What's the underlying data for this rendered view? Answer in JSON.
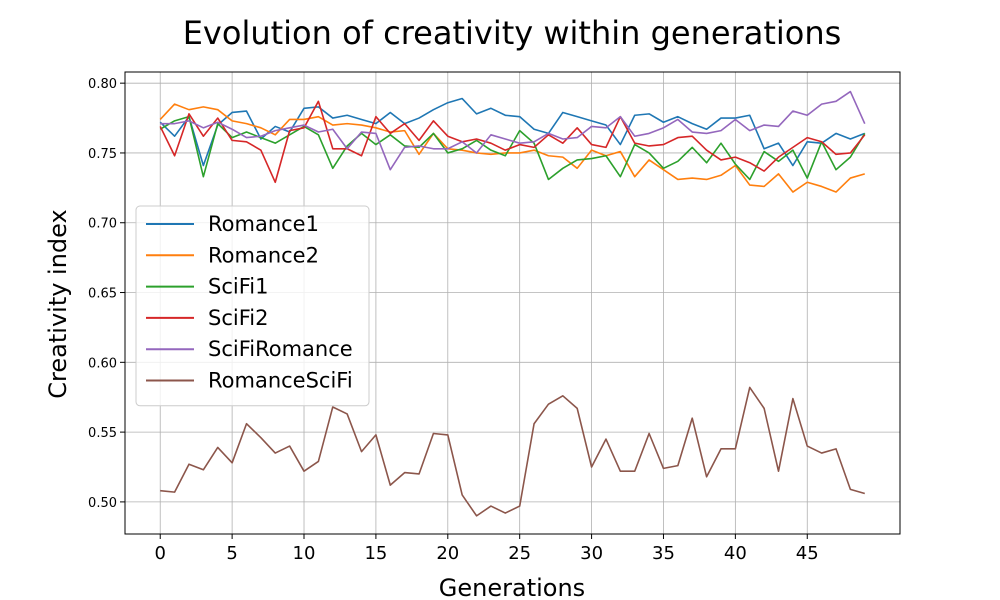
{
  "chart_data": {
    "type": "line",
    "title": "Evolution of creativity within generations",
    "xlabel": "Generations",
    "ylabel": "Creativity index",
    "xlim": [
      -2.45,
      51.45
    ],
    "ylim": [
      0.477,
      0.808
    ],
    "xticks": [
      0,
      5,
      10,
      15,
      20,
      25,
      30,
      35,
      40,
      45
    ],
    "xtick_labels": [
      "0",
      "5",
      "10",
      "15",
      "20",
      "25",
      "30",
      "35",
      "40",
      "45"
    ],
    "yticks": [
      0.5,
      0.55,
      0.6,
      0.65,
      0.7,
      0.75,
      0.8
    ],
    "ytick_labels": [
      "0.50",
      "0.55",
      "0.60",
      "0.65",
      "0.70",
      "0.75",
      "0.80"
    ],
    "grid": true,
    "legend_position": "center-left",
    "x": [
      0,
      1,
      2,
      3,
      4,
      5,
      6,
      7,
      8,
      9,
      10,
      11,
      12,
      13,
      14,
      15,
      16,
      17,
      18,
      19,
      20,
      21,
      22,
      23,
      24,
      25,
      26,
      27,
      28,
      29,
      30,
      31,
      32,
      33,
      34,
      35,
      36,
      37,
      38,
      39,
      40,
      41,
      42,
      43,
      44,
      45,
      46,
      47,
      48,
      49
    ],
    "series": [
      {
        "name": "Romance1",
        "color": "#1f77b4",
        "values": [
          0.772,
          0.762,
          0.776,
          0.741,
          0.77,
          0.779,
          0.78,
          0.76,
          0.769,
          0.765,
          0.782,
          0.783,
          0.775,
          0.777,
          0.774,
          0.771,
          0.779,
          0.771,
          0.775,
          0.781,
          0.786,
          0.789,
          0.778,
          0.782,
          0.777,
          0.776,
          0.767,
          0.764,
          0.779,
          0.776,
          0.773,
          0.77,
          0.756,
          0.777,
          0.778,
          0.772,
          0.776,
          0.771,
          0.767,
          0.775,
          0.775,
          0.777,
          0.753,
          0.757,
          0.741,
          0.758,
          0.757,
          0.764,
          0.76,
          0.764
        ]
      },
      {
        "name": "Romance2",
        "color": "#ff7f0e",
        "values": [
          0.774,
          0.785,
          0.781,
          0.783,
          0.781,
          0.773,
          0.771,
          0.768,
          0.763,
          0.774,
          0.774,
          0.776,
          0.77,
          0.771,
          0.77,
          0.768,
          0.765,
          0.766,
          0.749,
          0.764,
          0.753,
          0.752,
          0.75,
          0.749,
          0.75,
          0.75,
          0.752,
          0.748,
          0.747,
          0.739,
          0.752,
          0.748,
          0.751,
          0.733,
          0.745,
          0.738,
          0.731,
          0.732,
          0.731,
          0.734,
          0.741,
          0.727,
          0.726,
          0.735,
          0.722,
          0.729,
          0.726,
          0.722,
          0.732,
          0.735
        ]
      },
      {
        "name": "SciFi1",
        "color": "#2ca02c",
        "values": [
          0.767,
          0.773,
          0.776,
          0.733,
          0.771,
          0.761,
          0.765,
          0.761,
          0.757,
          0.763,
          0.769,
          0.763,
          0.739,
          0.755,
          0.764,
          0.756,
          0.763,
          0.755,
          0.754,
          0.764,
          0.75,
          0.753,
          0.759,
          0.752,
          0.748,
          0.766,
          0.757,
          0.731,
          0.739,
          0.745,
          0.746,
          0.748,
          0.733,
          0.756,
          0.75,
          0.739,
          0.744,
          0.754,
          0.743,
          0.757,
          0.742,
          0.731,
          0.751,
          0.744,
          0.752,
          0.732,
          0.758,
          0.738,
          0.747,
          0.764
        ]
      },
      {
        "name": "SciFi2",
        "color": "#d62728",
        "values": [
          0.769,
          0.748,
          0.778,
          0.762,
          0.775,
          0.759,
          0.758,
          0.752,
          0.729,
          0.766,
          0.768,
          0.787,
          0.753,
          0.753,
          0.748,
          0.776,
          0.764,
          0.771,
          0.759,
          0.773,
          0.762,
          0.758,
          0.76,
          0.757,
          0.752,
          0.756,
          0.754,
          0.763,
          0.757,
          0.768,
          0.756,
          0.754,
          0.776,
          0.757,
          0.755,
          0.756,
          0.761,
          0.762,
          0.752,
          0.745,
          0.747,
          0.743,
          0.737,
          0.747,
          0.754,
          0.761,
          0.758,
          0.749,
          0.75,
          0.763
        ]
      },
      {
        "name": "SciFiRomance",
        "color": "#9467bd",
        "values": [
          0.771,
          0.771,
          0.773,
          0.768,
          0.772,
          0.767,
          0.761,
          0.762,
          0.766,
          0.768,
          0.77,
          0.765,
          0.767,
          0.753,
          0.765,
          0.764,
          0.738,
          0.754,
          0.755,
          0.753,
          0.753,
          0.758,
          0.75,
          0.763,
          0.76,
          0.757,
          0.758,
          0.764,
          0.76,
          0.761,
          0.769,
          0.768,
          0.776,
          0.762,
          0.764,
          0.768,
          0.774,
          0.765,
          0.764,
          0.766,
          0.774,
          0.766,
          0.77,
          0.769,
          0.78,
          0.777,
          0.785,
          0.787,
          0.794,
          0.771
        ]
      },
      {
        "name": "RomanceSciFi",
        "color": "#8c564b",
        "values": [
          0.508,
          0.507,
          0.527,
          0.523,
          0.539,
          0.528,
          0.556,
          0.546,
          0.535,
          0.54,
          0.522,
          0.529,
          0.568,
          0.563,
          0.536,
          0.548,
          0.512,
          0.521,
          0.52,
          0.549,
          0.548,
          0.505,
          0.49,
          0.497,
          0.492,
          0.497,
          0.556,
          0.57,
          0.576,
          0.567,
          0.525,
          0.545,
          0.522,
          0.522,
          0.549,
          0.524,
          0.526,
          0.56,
          0.518,
          0.538,
          0.538,
          0.582,
          0.567,
          0.522,
          0.574,
          0.54,
          0.535,
          0.538,
          0.509,
          0.506
        ]
      }
    ]
  }
}
